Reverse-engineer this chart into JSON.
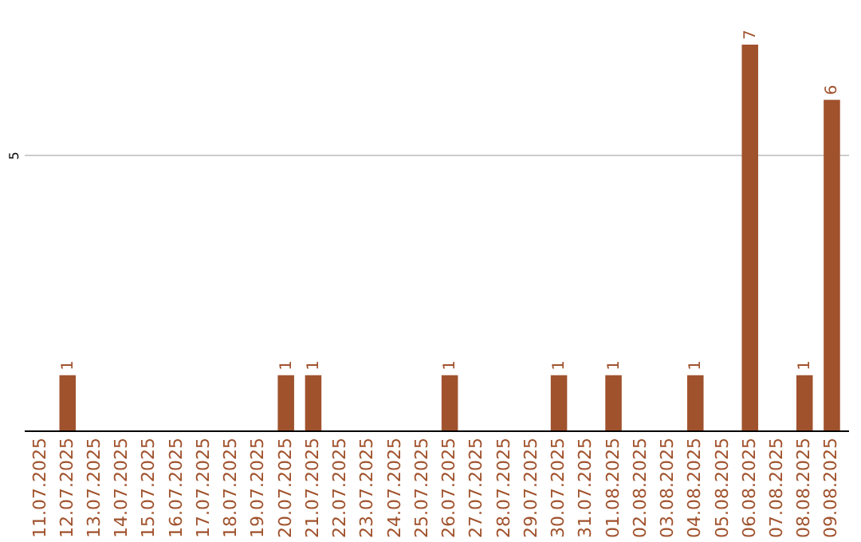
{
  "chart_data": {
    "type": "bar",
    "categories": [
      "11.07.2025",
      "12.07.2025",
      "13.07.2025",
      "14.07.2025",
      "15.07.2025",
      "16.07.2025",
      "17.07.2025",
      "18.07.2025",
      "19.07.2025",
      "20.07.2025",
      "21.07.2025",
      "22.07.2025",
      "23.07.2025",
      "24.07.2025",
      "25.07.2025",
      "26.07.2025",
      "27.07.2025",
      "28.07.2025",
      "29.07.2025",
      "30.07.2025",
      "31.07.2025",
      "01.08.2025",
      "02.08.2025",
      "03.08.2025",
      "04.08.2025",
      "05.08.2025",
      "06.08.2025",
      "07.08.2025",
      "08.08.2025",
      "09.08.2025"
    ],
    "values": [
      0,
      1,
      0,
      0,
      0,
      0,
      0,
      0,
      0,
      1,
      1,
      0,
      0,
      0,
      0,
      1,
      0,
      0,
      0,
      1,
      0,
      1,
      0,
      0,
      1,
      0,
      7,
      0,
      1,
      6
    ],
    "value_labels": [
      null,
      "1",
      null,
      null,
      null,
      null,
      null,
      null,
      null,
      "1",
      "1",
      null,
      null,
      null,
      null,
      "1",
      null,
      null,
      null,
      "1",
      null,
      "1",
      null,
      null,
      "1",
      null,
      "7",
      null,
      "1",
      "6"
    ],
    "color": "#a0522d",
    "ylim": [
      0,
      7
    ],
    "yticks": [
      5
    ],
    "grid": "y"
  }
}
